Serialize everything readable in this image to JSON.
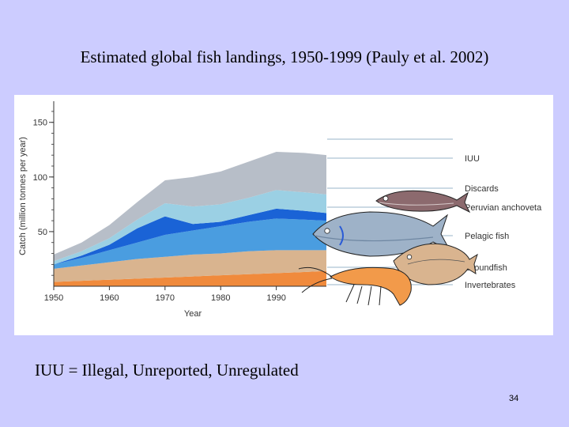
{
  "slide": {
    "title": "Estimated global fish landings, 1950-1999 (Pauly et al. 2002)",
    "footnote": "IUU = Illegal, Unreported, Unregulated",
    "page_number": "34"
  },
  "chart_data": {
    "type": "area",
    "stacked": true,
    "title": "",
    "xlabel": "Year",
    "ylabel": "Catch (million tonnes per year)",
    "x_ticks": [
      "1950",
      "1960",
      "1970",
      "1980",
      "1990"
    ],
    "y_ticks": [
      "50",
      "100",
      "150"
    ],
    "xlim": [
      1950,
      1999
    ],
    "ylim": [
      0,
      165
    ],
    "legend_position": "right",
    "x": [
      1950,
      1955,
      1960,
      1965,
      1970,
      1975,
      1980,
      1985,
      1990,
      1995,
      1999
    ],
    "series": [
      {
        "name": "Invertebrates",
        "color": "#f08a3c",
        "values": [
          4,
          5,
          6,
          7,
          8,
          9,
          10,
          11,
          12,
          13,
          14
        ]
      },
      {
        "name": "Groundfish",
        "color": "#d9b48f",
        "values": [
          12,
          14,
          16,
          18,
          19,
          20,
          20,
          21,
          21,
          20,
          19
        ]
      },
      {
        "name": "Pelagic fish",
        "color": "#4a9de0",
        "values": [
          4,
          7,
          11,
          15,
          20,
          22,
          25,
          27,
          29,
          28,
          27
        ]
      },
      {
        "name": "Peruvian anchoveta",
        "color": "#1a63d6",
        "values": [
          0,
          2,
          5,
          13,
          17,
          6,
          4,
          6,
          9,
          8,
          7
        ]
      },
      {
        "name": "Discards",
        "color": "#9bd0e4",
        "values": [
          3,
          4,
          6,
          8,
          12,
          16,
          16,
          16,
          17,
          17,
          17
        ]
      },
      {
        "name": "IUU",
        "color": "#b7bec8",
        "values": [
          6,
          8,
          12,
          16,
          21,
          27,
          30,
          33,
          35,
          36,
          36
        ]
      }
    ]
  }
}
